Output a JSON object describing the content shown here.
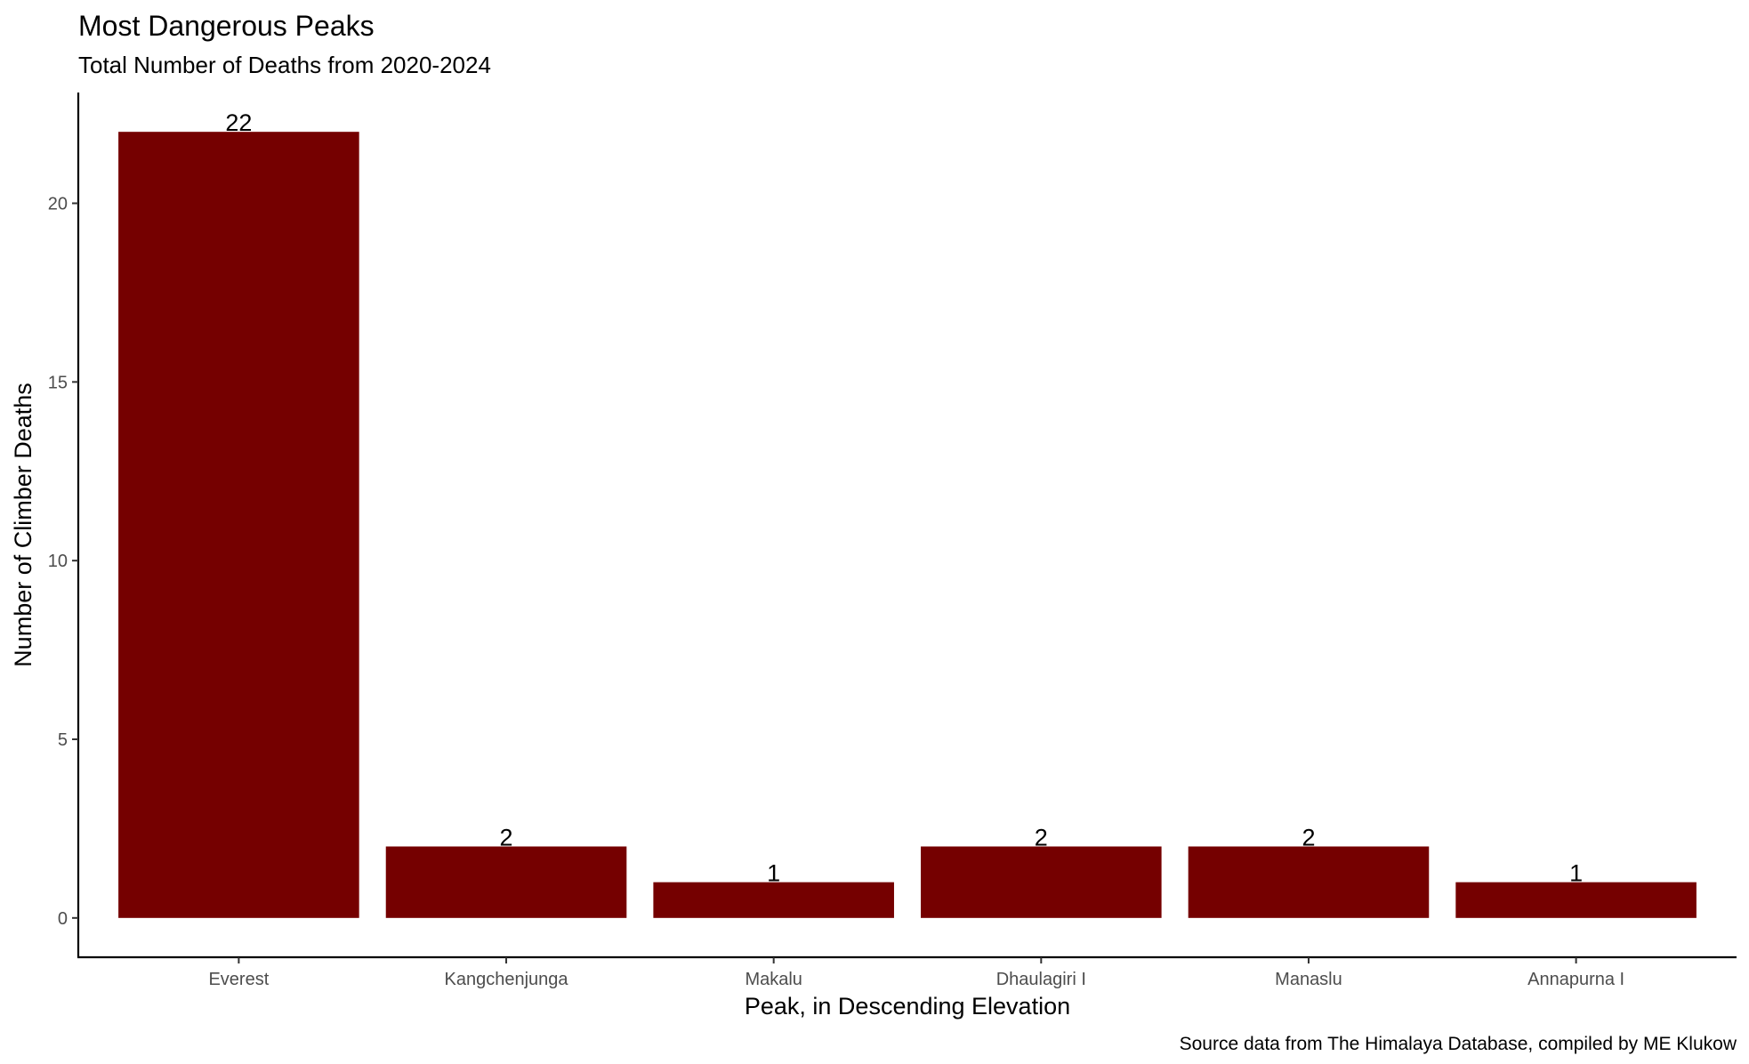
{
  "chart_data": {
    "type": "bar",
    "title": "Most Dangerous Peaks",
    "subtitle": "Total Number of Deaths from 2020-2024",
    "xlabel": "Peak, in Descending Elevation",
    "ylabel": "Number of Climber Deaths",
    "caption": "Source data from The Himalaya Database, compiled by ME Klukow",
    "categories": [
      "Everest",
      "Kangchenjunga",
      "Makalu",
      "Dhaulagiri I",
      "Manaslu",
      "Annapurna I"
    ],
    "values": [
      22,
      2,
      1,
      2,
      2,
      1
    ],
    "data_labels": [
      "22",
      "2",
      "1",
      "2",
      "2",
      "1"
    ],
    "yticks": [
      0,
      5,
      10,
      15,
      20
    ],
    "ylim": [
      -1.1,
      23.1
    ],
    "bar_color": "#750000",
    "grid": false,
    "legend": "none"
  }
}
